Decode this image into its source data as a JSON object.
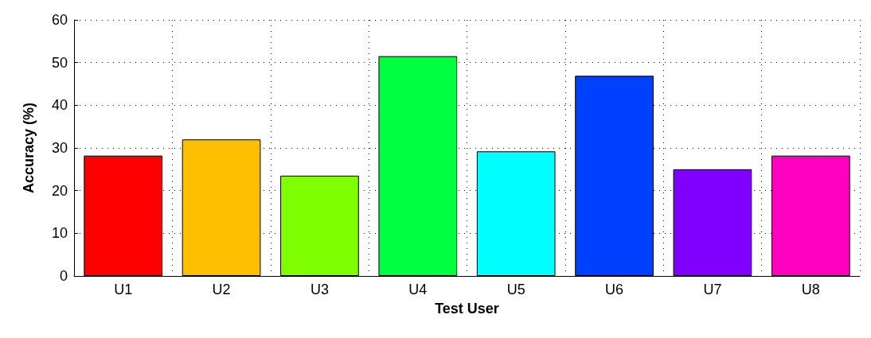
{
  "chart_data": {
    "type": "bar",
    "xlabel": "Test User",
    "ylabel": "Accuracy (%)",
    "categories": [
      "U1",
      "U2",
      "U3",
      "U4",
      "U5",
      "U6",
      "U7",
      "U8"
    ],
    "values": [
      28.2,
      32,
      23.5,
      51.5,
      29.2,
      46.9,
      25,
      28.2
    ],
    "colors": [
      "#ff0000",
      "#ffbf00",
      "#80ff00",
      "#00ff40",
      "#00ffff",
      "#0040ff",
      "#8000ff",
      "#ff00bf"
    ],
    "ylim": [
      0,
      60
    ],
    "yticks": [
      0,
      10,
      20,
      30,
      40,
      50,
      60
    ],
    "grid": true
  }
}
